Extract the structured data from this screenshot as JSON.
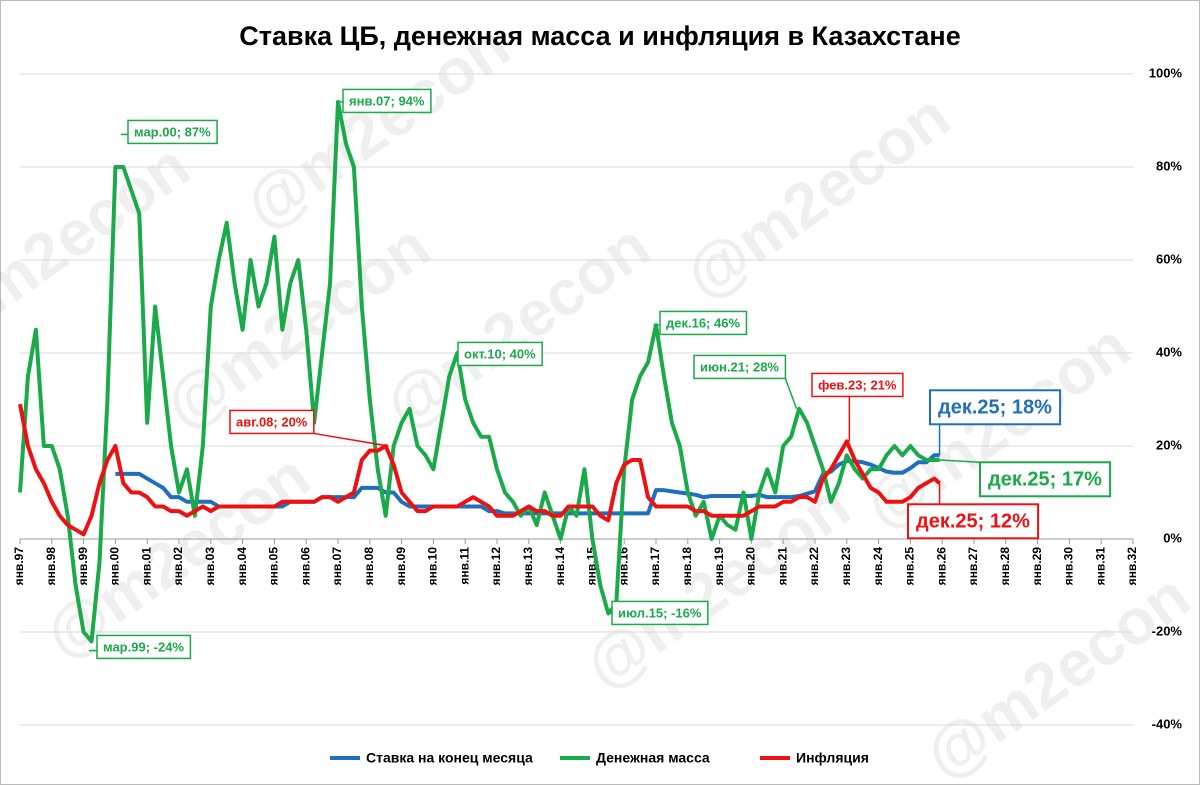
{
  "chart_data": {
    "type": "line",
    "title": "Ставка ЦБ, денежная масса и инфляция в Казахстане",
    "watermark": "@m2econ",
    "x": [
      1997,
      1997.25,
      1997.5,
      1997.75,
      1998,
      1998.25,
      1998.5,
      1998.75,
      1999,
      1999.25,
      1999.5,
      1999.75,
      2000,
      2000.25,
      2000.5,
      2000.75,
      2001,
      2001.25,
      2001.5,
      2001.75,
      2002,
      2002.25,
      2002.5,
      2002.75,
      2003,
      2003.25,
      2003.5,
      2003.75,
      2004,
      2004.25,
      2004.5,
      2004.75,
      2005,
      2005.25,
      2005.5,
      2005.75,
      2006,
      2006.25,
      2006.5,
      2006.75,
      2007,
      2007.25,
      2007.5,
      2007.75,
      2008,
      2008.25,
      2008.5,
      2008.75,
      2009,
      2009.25,
      2009.5,
      2009.75,
      2010,
      2010.25,
      2010.5,
      2010.75,
      2011,
      2011.25,
      2011.5,
      2011.75,
      2012,
      2012.25,
      2012.5,
      2012.75,
      2013,
      2013.25,
      2013.5,
      2013.75,
      2014,
      2014.25,
      2014.5,
      2014.75,
      2015,
      2015.25,
      2015.5,
      2015.75,
      2016,
      2016.25,
      2016.5,
      2016.75,
      2017,
      2017.25,
      2017.5,
      2017.75,
      2018,
      2018.25,
      2018.5,
      2018.75,
      2019,
      2019.25,
      2019.5,
      2019.75,
      2020,
      2020.25,
      2020.5,
      2020.75,
      2021,
      2021.25,
      2021.5,
      2021.75,
      2022,
      2022.25,
      2022.5,
      2022.75,
      2023,
      2023.25,
      2023.5,
      2023.75,
      2024,
      2024.25,
      2024.5,
      2024.75,
      2025,
      2025.25,
      2025.5,
      2025.75,
      2025.917
    ],
    "series": [
      {
        "name": "Ставка на конец месяца",
        "color": "#1f6fbf",
        "values": [
          null,
          null,
          null,
          null,
          null,
          null,
          null,
          null,
          null,
          null,
          null,
          null,
          14,
          14,
          14,
          14,
          13,
          12,
          11,
          9,
          9,
          8,
          8,
          8,
          8,
          7,
          7,
          7,
          7,
          7,
          7,
          7,
          7,
          7,
          8,
          8,
          8,
          8,
          9,
          9,
          9,
          9,
          9,
          11,
          11,
          11,
          10,
          10,
          8,
          7,
          7,
          7,
          7,
          7,
          7,
          7,
          7,
          7,
          7,
          6,
          6,
          5.5,
          5.5,
          5.5,
          5.5,
          5.5,
          5.5,
          5.5,
          5.5,
          5.5,
          5.5,
          5.5,
          5.5,
          5.5,
          5.5,
          5.5,
          5.5,
          5.5,
          5.5,
          5.5,
          10.5,
          10.5,
          10.25,
          10,
          9.75,
          9.5,
          9,
          9.25,
          9.25,
          9.25,
          9.25,
          9.25,
          9.25,
          9.5,
          9,
          9,
          9,
          9,
          9.25,
          9.75,
          10.25,
          14,
          14.5,
          16,
          16.75,
          16.75,
          16.5,
          16,
          15.25,
          14.5,
          14.25,
          14.25,
          15.25,
          16.5,
          16.5,
          18,
          18
        ]
      },
      {
        "name": "Денежная масса",
        "color": "#1aaa4a",
        "values": [
          10,
          35,
          45,
          20,
          20,
          15,
          5,
          -10,
          -20,
          -22,
          -5,
          30,
          80,
          80,
          75,
          70,
          25,
          50,
          35,
          20,
          10,
          15,
          5,
          20,
          50,
          60,
          68,
          55,
          45,
          60,
          50,
          55,
          65,
          45,
          55,
          60,
          45,
          25,
          40,
          55,
          94,
          85,
          80,
          50,
          30,
          15,
          5,
          20,
          25,
          28,
          20,
          18,
          15,
          25,
          35,
          40,
          30,
          25,
          22,
          22,
          15,
          10,
          8,
          5,
          7,
          3,
          10,
          5,
          0,
          7,
          5,
          15,
          0,
          -10,
          -16,
          -14,
          15,
          30,
          35,
          38,
          46,
          35,
          25,
          20,
          10,
          5,
          8,
          0,
          5,
          3,
          2,
          10,
          0,
          10,
          15,
          10,
          20,
          22,
          28,
          25,
          20,
          15,
          8,
          12,
          18,
          15,
          13,
          15,
          15,
          18,
          20,
          18,
          20,
          18,
          17,
          17,
          17
        ]
      },
      {
        "name": "Инфляция",
        "color": "#ee1111",
        "values": [
          29,
          20,
          15,
          12,
          8,
          5,
          3,
          2,
          1,
          5,
          12,
          17,
          20,
          12,
          10,
          10,
          9,
          7,
          7,
          6,
          6,
          5,
          6,
          7,
          6,
          7,
          7,
          7,
          7,
          7,
          7,
          7,
          7,
          8,
          8,
          8,
          8,
          8,
          9,
          9,
          8,
          9,
          10,
          17,
          19,
          19,
          20,
          16,
          10,
          8,
          6,
          6,
          7,
          7,
          7,
          7,
          8,
          9,
          8,
          7,
          5,
          5,
          5,
          6,
          7,
          6,
          6,
          5,
          5,
          7,
          7,
          7,
          7,
          5,
          4,
          12,
          16,
          17,
          17,
          9,
          7,
          7,
          7,
          7,
          7,
          6,
          6,
          5,
          5,
          5,
          5,
          5,
          6,
          7,
          7,
          7,
          8,
          8,
          9,
          9,
          8,
          13,
          15,
          18,
          21,
          17,
          14,
          11,
          10,
          8,
          8,
          8,
          9,
          11,
          12,
          13,
          12
        ]
      }
    ],
    "xlim": [
      1997,
      2032
    ],
    "xticks": [
      {
        "value": 1997,
        "label": "янв.97"
      },
      {
        "value": 1998,
        "label": "янв.98"
      },
      {
        "value": 1999,
        "label": "янв.99"
      },
      {
        "value": 2000,
        "label": "янв.00"
      },
      {
        "value": 2001,
        "label": "янв.01"
      },
      {
        "value": 2002,
        "label": "янв.02"
      },
      {
        "value": 2003,
        "label": "янв.03"
      },
      {
        "value": 2004,
        "label": "янв.04"
      },
      {
        "value": 2005,
        "label": "янв.05"
      },
      {
        "value": 2006,
        "label": "янв.06"
      },
      {
        "value": 2007,
        "label": "янв.07"
      },
      {
        "value": 2008,
        "label": "янв.08"
      },
      {
        "value": 2009,
        "label": "янв.09"
      },
      {
        "value": 2010,
        "label": "янв.10"
      },
      {
        "value": 2011,
        "label": "янв.11"
      },
      {
        "value": 2012,
        "label": "янв.12"
      },
      {
        "value": 2013,
        "label": "янв.13"
      },
      {
        "value": 2014,
        "label": "янв.14"
      },
      {
        "value": 2015,
        "label": "янв.15"
      },
      {
        "value": 2016,
        "label": "янв.16"
      },
      {
        "value": 2017,
        "label": "янв.17"
      },
      {
        "value": 2018,
        "label": "янв.18"
      },
      {
        "value": 2019,
        "label": "янв.19"
      },
      {
        "value": 2020,
        "label": "янв.20"
      },
      {
        "value": 2021,
        "label": "янв.21"
      },
      {
        "value": 2022,
        "label": "янв.22"
      },
      {
        "value": 2023,
        "label": "янв.23"
      },
      {
        "value": 2024,
        "label": "янв.24"
      },
      {
        "value": 2025,
        "label": "янв.25"
      },
      {
        "value": 2026,
        "label": "янв.26"
      },
      {
        "value": 2027,
        "label": "янв.27"
      },
      {
        "value": 2028,
        "label": "янв.28"
      },
      {
        "value": 2029,
        "label": "янв.29"
      },
      {
        "value": 2030,
        "label": "янв.30"
      },
      {
        "value": 2031,
        "label": "янв.31"
      },
      {
        "value": 2032,
        "label": "янв.32"
      }
    ],
    "ylim": [
      -40,
      100
    ],
    "yticks": [
      {
        "value": -40,
        "label": "-40%"
      },
      {
        "value": -20,
        "label": "-20%"
      },
      {
        "value": 0,
        "label": "0%"
      },
      {
        "value": 20,
        "label": "20%"
      },
      {
        "value": 40,
        "label": "40%"
      },
      {
        "value": 60,
        "label": "60%"
      },
      {
        "value": 80,
        "label": "80%"
      },
      {
        "value": 100,
        "label": "100%"
      }
    ],
    "grid": true,
    "legend": "bottom",
    "annotations": [
      {
        "text": "мар.99; -24%",
        "x": 1999.17,
        "y": -24,
        "color": "#1aaa4a"
      },
      {
        "text": "мар.00; 87%",
        "x": 2000.17,
        "y": 87,
        "color": "#1aaa4a"
      },
      {
        "text": "янв.07; 94%",
        "x": 2007,
        "y": 94,
        "color": "#1aaa4a"
      },
      {
        "text": "авг.08; 20%",
        "x": 2008.58,
        "y": 20,
        "color": "#ee1111"
      },
      {
        "text": "окт.10; 40%",
        "x": 2010.75,
        "y": 40,
        "color": "#1aaa4a"
      },
      {
        "text": "июл.15; -16%",
        "x": 2015.5,
        "y": -16,
        "color": "#1aaa4a"
      },
      {
        "text": "дек.16; 46%",
        "x": 2016.92,
        "y": 46,
        "color": "#1aaa4a"
      },
      {
        "text": "июн.21; 28%",
        "x": 2021.42,
        "y": 28,
        "color": "#1aaa4a"
      },
      {
        "text": "фев.23; 21%",
        "x": 2023.08,
        "y": 21,
        "color": "#ee1111"
      },
      {
        "text": "дек.25; 18%",
        "x": 2025.917,
        "y": 18,
        "color": "#1f6fbf"
      },
      {
        "text": "дек.25; 17%",
        "x": 2025.917,
        "y": 17,
        "color": "#1aaa4a"
      },
      {
        "text": "дек.25; 12%",
        "x": 2025.917,
        "y": 12,
        "color": "#ee1111"
      }
    ]
  }
}
